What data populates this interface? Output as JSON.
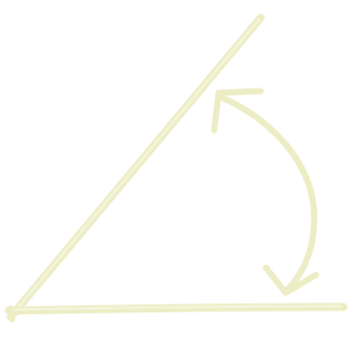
{
  "diagram": {
    "type": "angle",
    "style": "hand-drawn chalk",
    "stroke_color": "#ecedc5",
    "stroke_highlight": "#f3f4d9",
    "arc": {
      "bidirectional": true
    }
  }
}
